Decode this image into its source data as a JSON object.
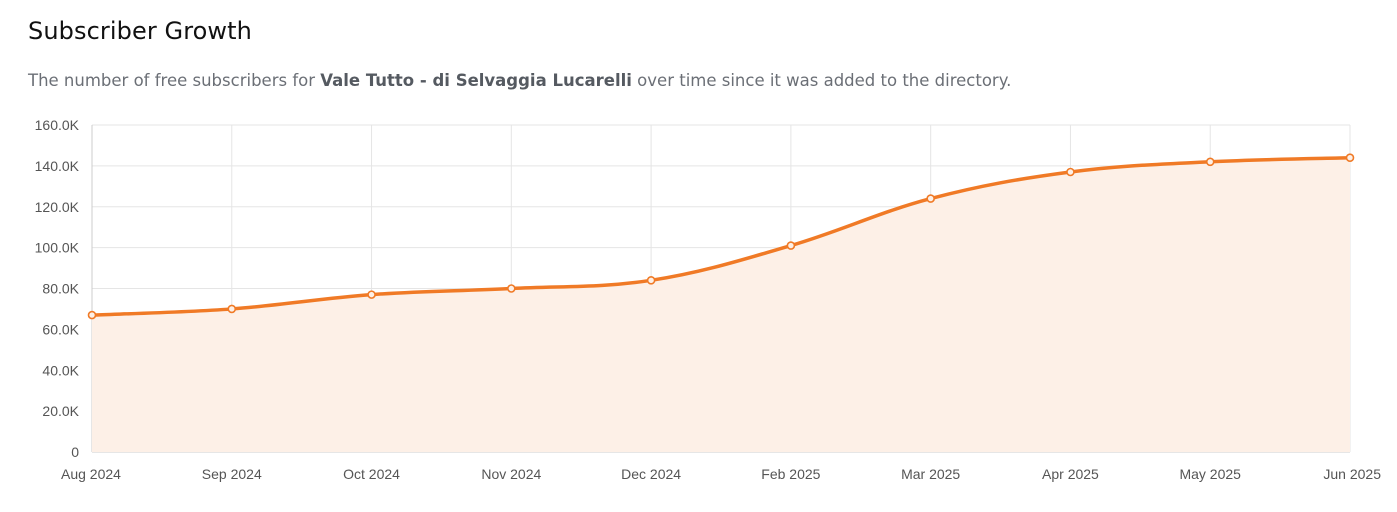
{
  "header": {
    "title": "Subscriber Growth",
    "subtitle_prefix": "The number of free subscribers for ",
    "subtitle_name": "Vale Tutto - di Selvaggia Lucarelli",
    "subtitle_suffix": " over time since it was added to the directory."
  },
  "colors": {
    "line": "#f07a26",
    "fill": "#fdf0e7",
    "grid": "#e5e5e5",
    "axis": "#cccccc"
  },
  "chart_data": {
    "type": "area",
    "title": "Subscriber Growth",
    "x": [
      "Aug 2024",
      "Sep 2024",
      "Oct 2024",
      "Nov 2024",
      "Dec 2024",
      "Feb 2025",
      "Mar 2025",
      "Apr 2025",
      "May 2025",
      "Jun 2025"
    ],
    "series": [
      {
        "values": [
          67000,
          70000,
          77000,
          80000,
          84000,
          101000,
          124000,
          137000,
          142000,
          144000
        ]
      }
    ],
    "ylim": [
      0,
      160000
    ],
    "yticks": [
      0,
      20000,
      40000,
      60000,
      80000,
      100000,
      120000,
      140000,
      160000
    ],
    "ytick_labels": [
      "0",
      "20.0K",
      "40.0K",
      "60.0K",
      "80.0K",
      "100.0K",
      "120.0K",
      "140.0K",
      "160.0K"
    ],
    "grid": true,
    "legend": "none"
  }
}
